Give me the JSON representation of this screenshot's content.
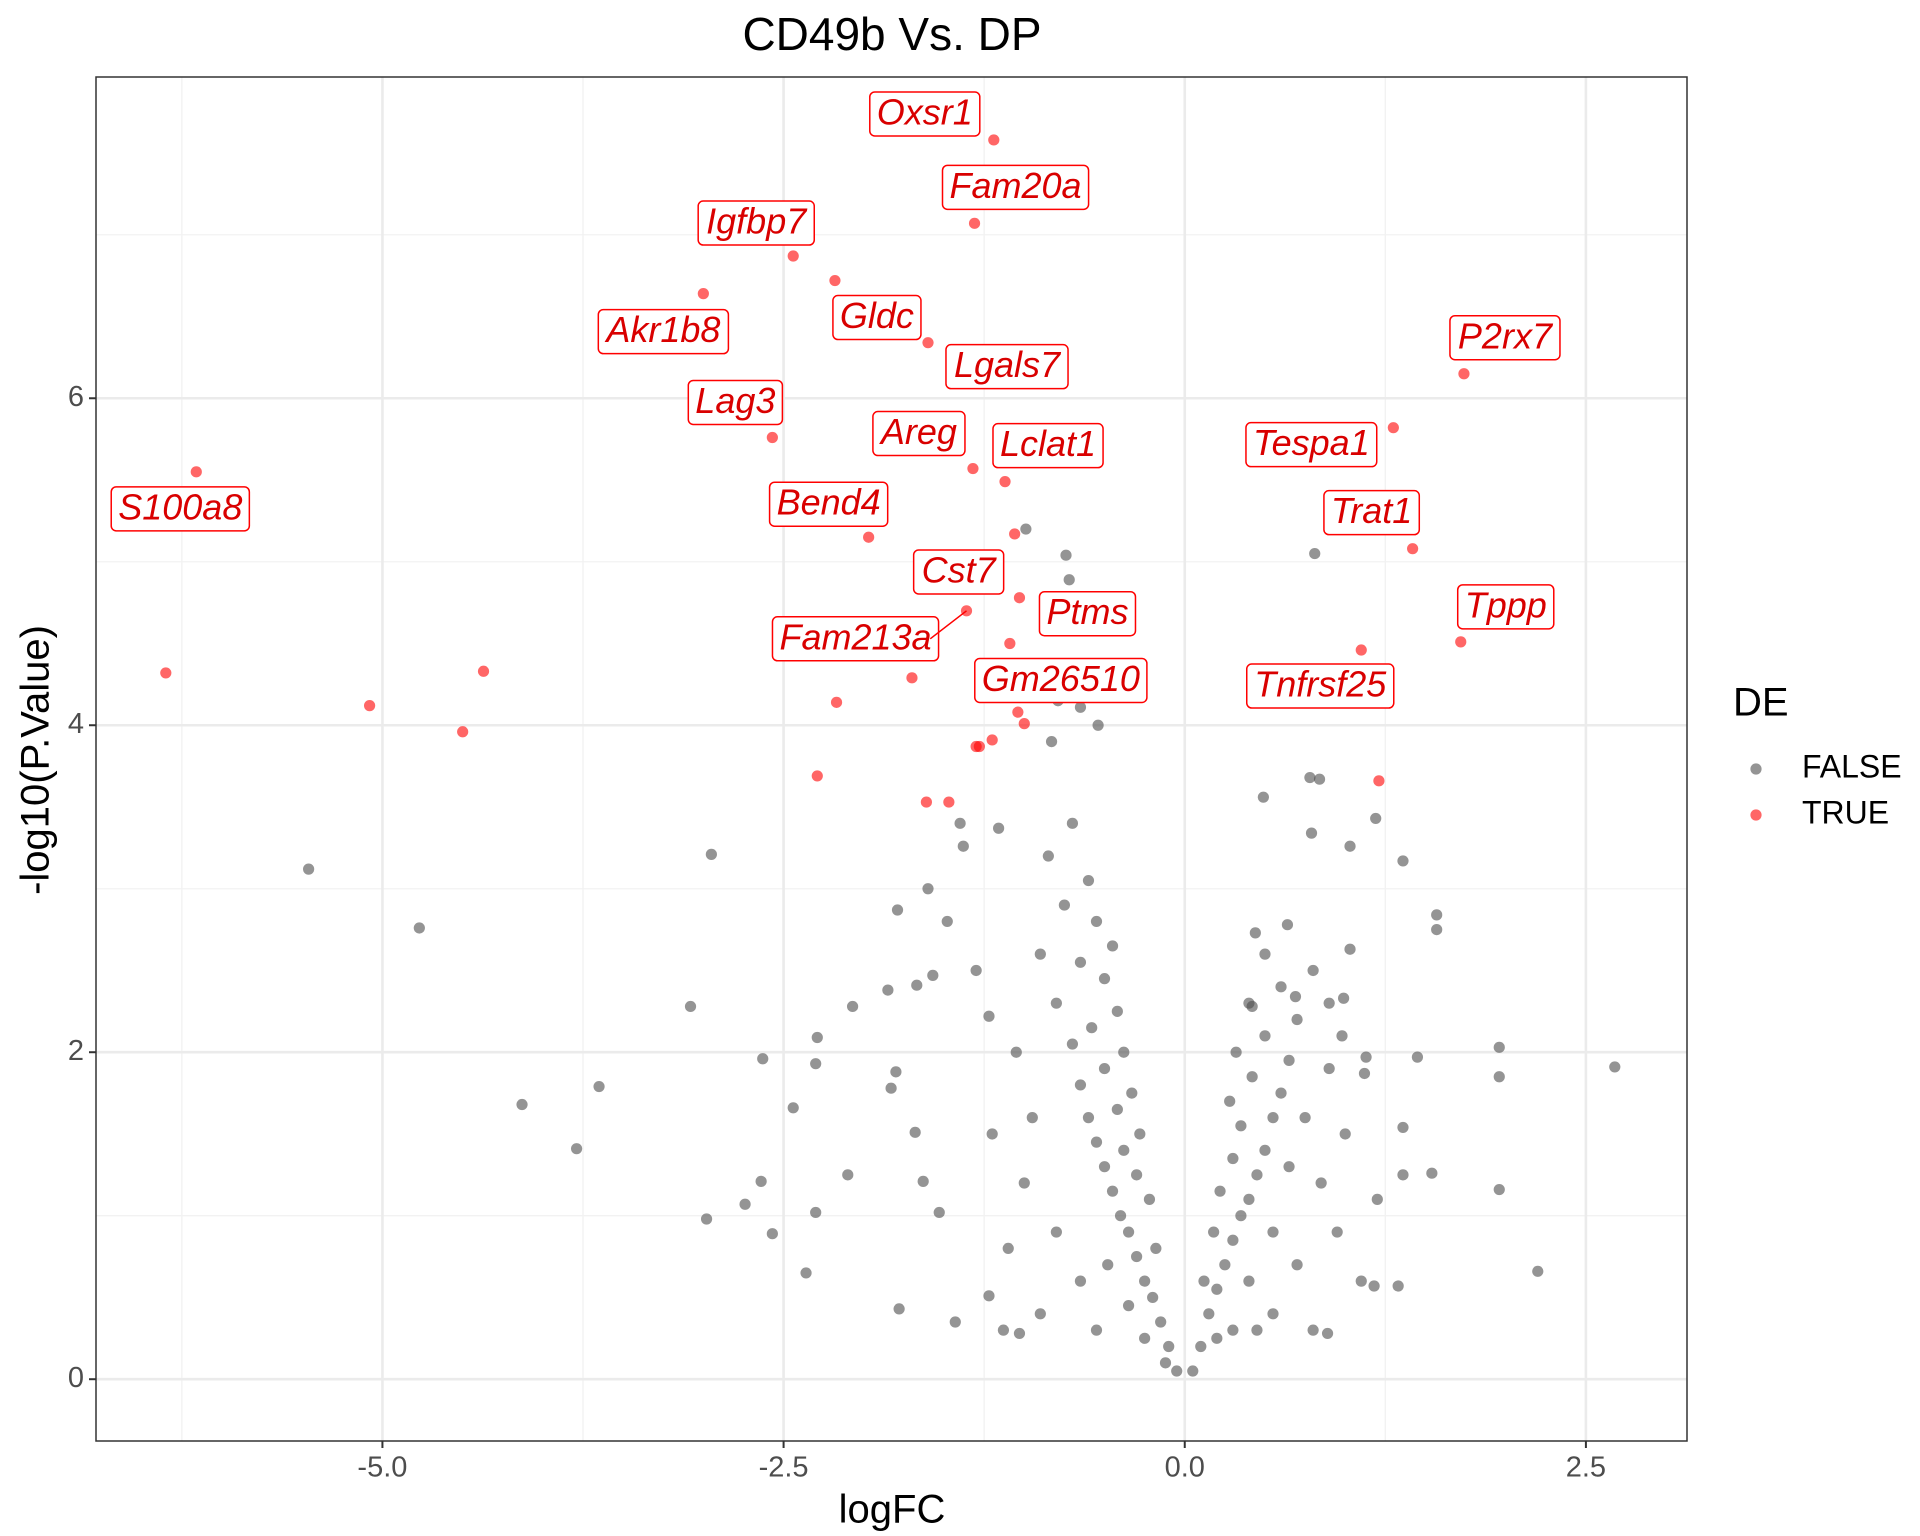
{
  "chart_data": {
    "type": "scatter",
    "title": "CD49b Vs. DP",
    "x_label": "logFC",
    "y_label": "-log10(P.Value)",
    "legend_title": "DE",
    "legend_position": "right",
    "grid": true,
    "point_alpha": 0.6,
    "xlim": [
      -6.785,
      3.13
    ],
    "ylim": [
      -0.378,
      7.965
    ],
    "xticks": [
      {
        "value": -5,
        "label": "-5.0"
      },
      2.5,
      {
        "value": -2.5,
        "label": "-2.5"
      },
      {
        "value": 0,
        "label": "0.0"
      }
    ],
    "yticks": [
      0,
      2,
      4,
      6
    ],
    "x_minor_ticks": [
      -6.25,
      -3.75,
      -1.25,
      1.25
    ],
    "y_minor_ticks": [
      1,
      3,
      5,
      7
    ],
    "series": [
      {
        "name": "FALSE",
        "color": "#4d4d4d",
        "x": [
          -5.46,
          -4.77,
          -2.95,
          -3.08,
          -4.13,
          -3.65,
          -3.79,
          -2.63,
          -2.29,
          -2.3,
          -2.07,
          -2.44,
          -2.64,
          -2.98,
          -2.36,
          -2.74,
          -2.57,
          -2.3,
          -2.1,
          2.68,
          1.96,
          1.96,
          1.96,
          2.2,
          1.57,
          1.57,
          1.36,
          0.81,
          -0.99,
          -0.74,
          -0.72,
          -0.54,
          -0.79,
          -0.65,
          -0.83,
          0.78,
          0.84,
          0.49,
          1.19,
          0.79,
          1.03,
          -1.4,
          -1.16,
          -1.38,
          -1.6,
          -1.79,
          -1.48,
          -1.85,
          -1.67,
          -1.57,
          -1.22,
          -1.68,
          -1.8,
          -1.83,
          -1.63,
          -1.53,
          -1.78,
          -1.43,
          -1.22,
          -1.13,
          -1.03,
          1.18,
          1.33,
          0.89,
          1.54,
          1.36,
          1.45,
          1.12,
          1.36,
          0.64,
          0.44,
          1.03,
          0.99,
          0.42,
          0.69,
          1.13,
          -0.05,
          -0.1,
          -0.15,
          -0.2,
          -0.25,
          -0.3,
          -0.18,
          -0.35,
          -0.4,
          -0.22,
          -0.45,
          -0.3,
          -0.5,
          -0.38,
          -0.55,
          -0.28,
          -0.6,
          -0.42,
          -0.33,
          -0.65,
          -0.5,
          -0.38,
          -0.7,
          -0.58,
          -0.42,
          -0.8,
          -0.5,
          -0.65,
          -0.45,
          -0.9,
          -0.55,
          -0.75,
          -0.6,
          -0.85,
          -0.7,
          -0.95,
          -1.0,
          -0.8,
          -0.65,
          -0.9,
          -0.55,
          -1.1,
          -1.2,
          -1.05,
          -1.3,
          -0.48,
          -0.35,
          -0.25,
          -0.12,
          0.05,
          0.1,
          0.15,
          0.2,
          0.25,
          0.12,
          0.3,
          0.18,
          0.35,
          0.4,
          0.22,
          0.45,
          0.3,
          0.5,
          0.35,
          0.55,
          0.28,
          0.6,
          0.42,
          0.65,
          0.32,
          0.5,
          0.7,
          0.4,
          0.6,
          0.8,
          0.5,
          0.9,
          0.75,
          0.85,
          0.95,
          0.7,
          0.55,
          1.0,
          1.1,
          0.8,
          0.45,
          0.3,
          0.65,
          0.2,
          0.4,
          0.55,
          0.9,
          1.2,
          0.98
        ],
        "values": [
          3.12,
          2.76,
          3.21,
          2.28,
          1.68,
          1.79,
          1.41,
          1.96,
          2.09,
          1.93,
          2.28,
          1.66,
          1.21,
          0.98,
          0.65,
          1.07,
          0.89,
          1.02,
          1.25,
          1.91,
          2.03,
          1.85,
          1.16,
          0.66,
          2.75,
          2.84,
          3.17,
          5.05,
          5.2,
          5.04,
          4.89,
          4.0,
          4.15,
          4.11,
          3.9,
          3.68,
          3.67,
          3.56,
          3.43,
          3.34,
          3.26,
          3.4,
          3.37,
          3.26,
          3.0,
          2.87,
          2.8,
          2.38,
          2.41,
          2.47,
          2.22,
          1.51,
          1.88,
          1.78,
          1.21,
          1.02,
          0.43,
          0.35,
          0.51,
          0.3,
          0.28,
          0.57,
          0.57,
          0.28,
          1.26,
          1.54,
          1.97,
          1.87,
          1.25,
          2.78,
          2.73,
          2.63,
          2.33,
          2.28,
          2.34,
          1.97,
          0.05,
          0.2,
          0.35,
          0.5,
          0.6,
          0.75,
          0.8,
          0.9,
          1.0,
          1.1,
          1.15,
          1.25,
          1.3,
          1.4,
          1.45,
          1.5,
          1.6,
          1.65,
          1.75,
          1.8,
          1.9,
          2.0,
          2.05,
          2.15,
          2.25,
          2.3,
          2.45,
          2.55,
          2.65,
          2.6,
          2.8,
          2.9,
          3.05,
          3.2,
          3.4,
          1.6,
          1.2,
          0.9,
          0.6,
          0.4,
          0.3,
          0.8,
          1.5,
          2.0,
          2.5,
          0.7,
          0.45,
          0.25,
          0.1,
          0.05,
          0.2,
          0.4,
          0.55,
          0.7,
          0.6,
          0.85,
          0.9,
          1.0,
          1.1,
          1.15,
          1.25,
          1.35,
          1.4,
          1.55,
          1.6,
          1.7,
          1.75,
          1.85,
          1.95,
          2.0,
          2.1,
          2.2,
          2.3,
          2.4,
          2.5,
          2.6,
          2.3,
          1.6,
          1.2,
          0.9,
          0.7,
          0.4,
          1.5,
          0.6,
          0.3,
          0.3,
          0.3,
          1.3,
          0.25,
          0.6,
          0.9,
          1.9,
          1.1,
          2.1
        ]
      },
      {
        "name": "TRUE",
        "color": "#ff0000",
        "x": [
          -1.19,
          -1.31,
          -2.44,
          -2.18,
          -3.0,
          -1.6,
          1.74,
          1.3,
          -2.57,
          -1.32,
          -6.16,
          -1.12,
          -1.06,
          -1.97,
          1.42,
          -1.03,
          -1.36,
          1.72,
          -1.09,
          1.1,
          -1.7,
          -6.35,
          -4.37,
          -2.17,
          -5.08,
          -1.04,
          -1.0,
          -4.5,
          -1.2,
          -1.3,
          -1.28,
          -2.29,
          1.21,
          -1.61,
          -1.47
        ],
        "values": [
          7.58,
          7.07,
          6.87,
          6.72,
          6.64,
          6.34,
          6.15,
          5.82,
          5.76,
          5.57,
          5.55,
          5.49,
          5.17,
          5.15,
          5.08,
          4.78,
          4.7,
          4.51,
          4.5,
          4.46,
          4.29,
          4.32,
          4.33,
          4.14,
          4.12,
          4.08,
          4.01,
          3.96,
          3.91,
          3.87,
          3.87,
          3.69,
          3.66,
          3.53,
          3.53
        ],
        "labels": [
          "Oxsr1",
          "Fam20a",
          "Igfbp7",
          "Gldc",
          "Akr1b8",
          "Lgals7",
          "P2rx7",
          "Tespa1",
          "Lag3",
          "Areg",
          "S100a8",
          "Lclat1",
          "Cst7",
          "Bend4",
          "Trat1",
          "Ptms",
          "Fam213a",
          "Tppp",
          "Gm26510",
          "Tnfrsf25",
          null,
          null,
          null,
          null,
          null,
          null,
          null,
          null,
          null,
          null,
          null,
          null,
          null,
          null,
          null
        ]
      }
    ]
  }
}
